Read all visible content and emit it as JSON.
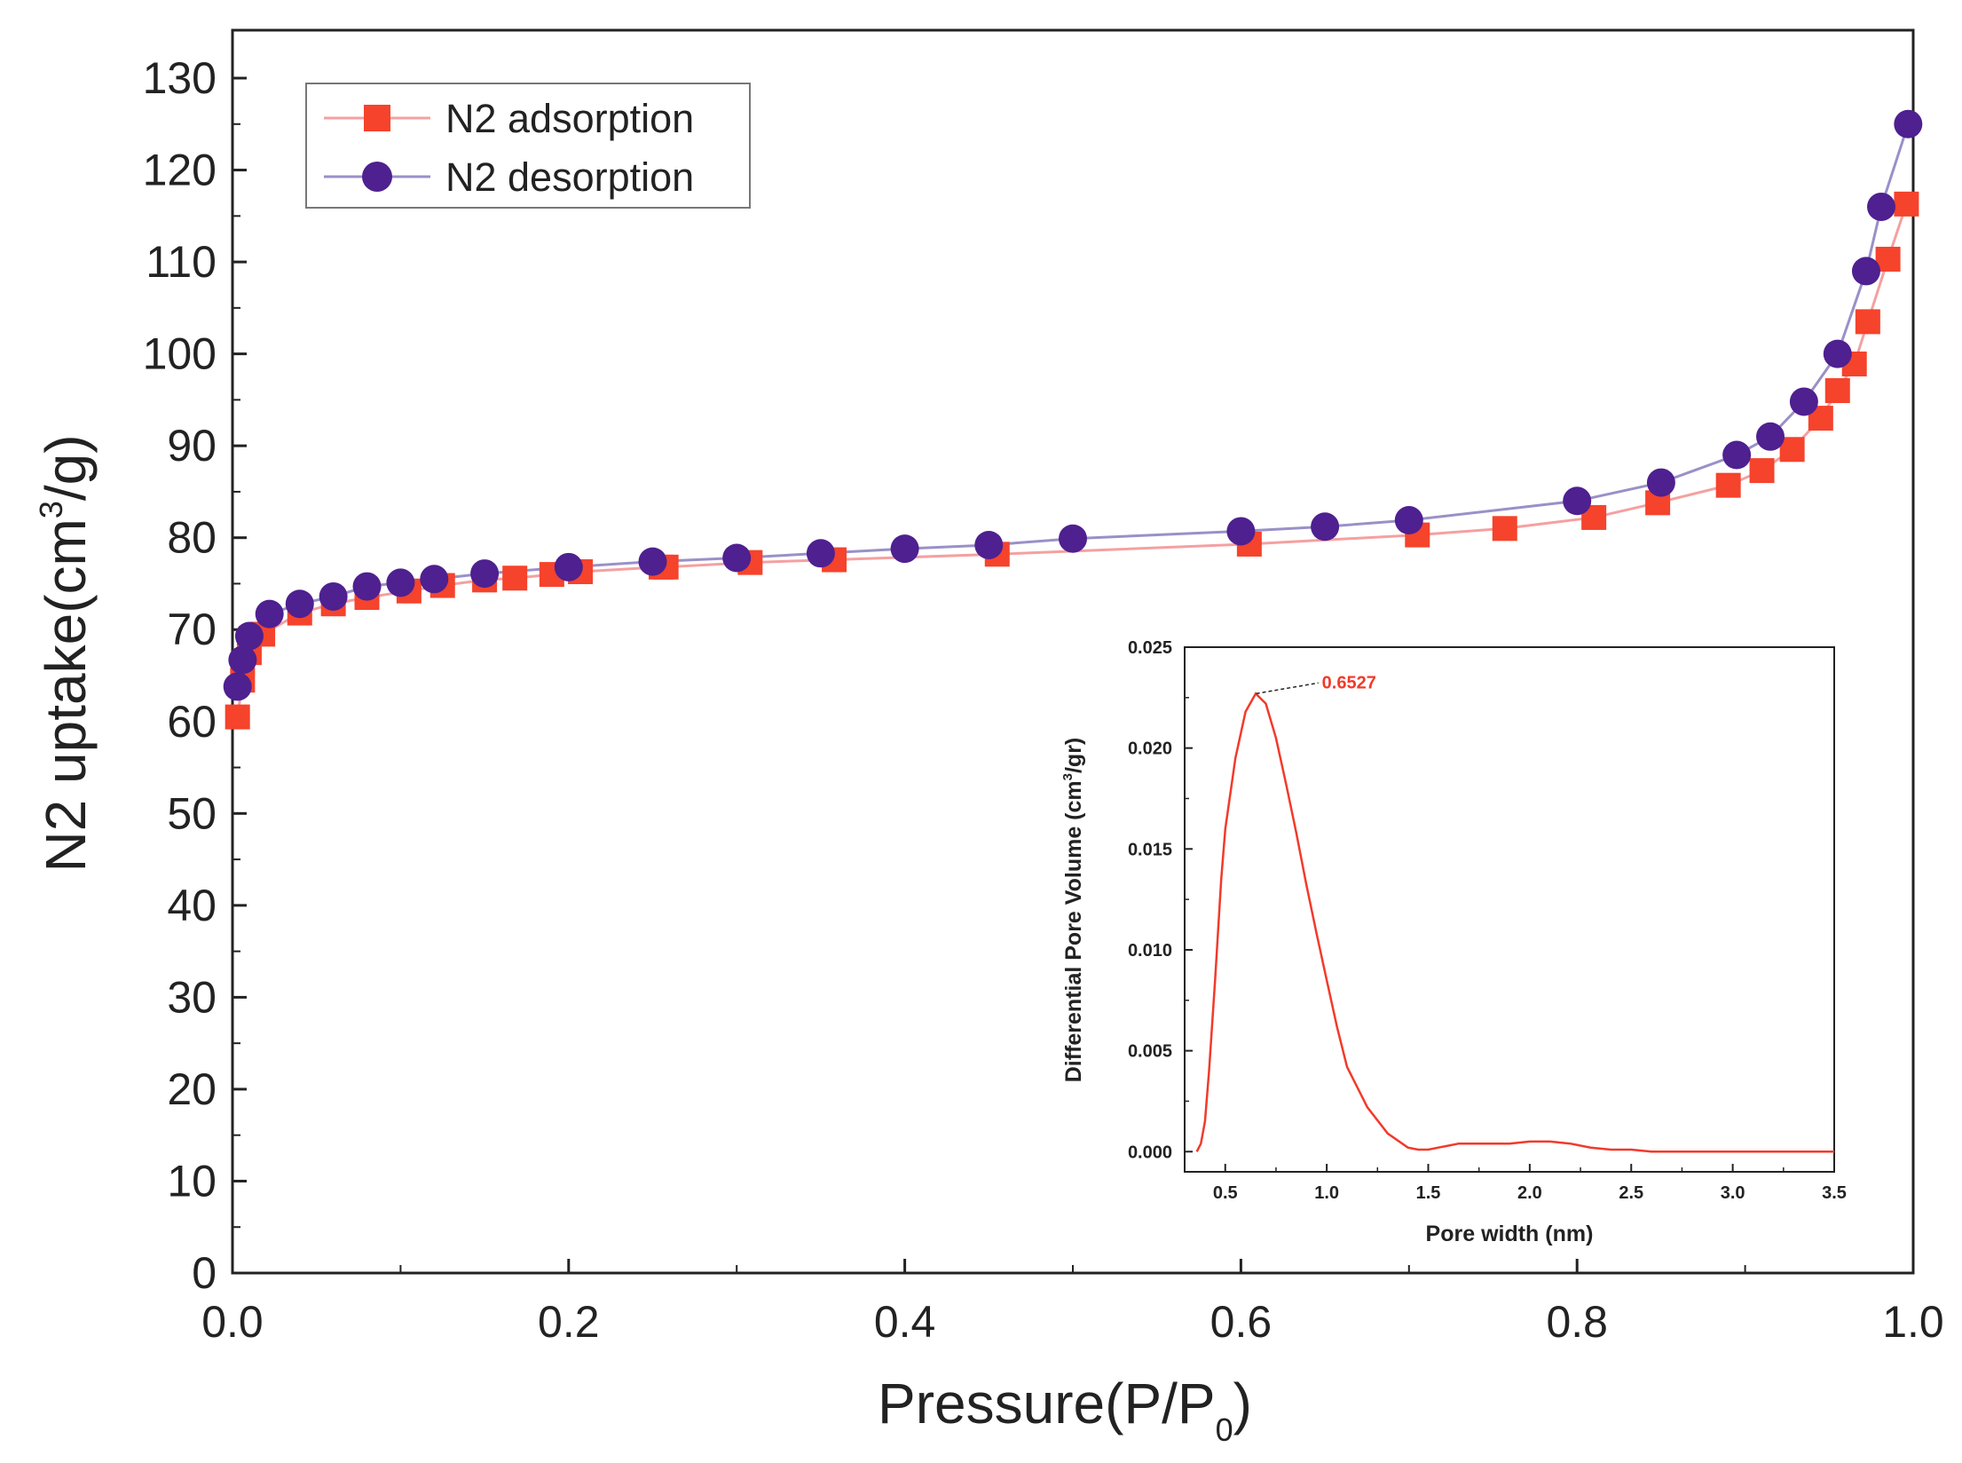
{
  "colors": {
    "adsorption": "#f5432c",
    "adsorption_line": "#f5a0a0",
    "desorption": "#4e2090",
    "desorption_line": "#9a90c8",
    "inset_curve": "#f23a2a",
    "axis": "#222222"
  },
  "chart_data": [
    {
      "type": "scatter",
      "xlabel": "Pressure(P/P0)",
      "xlabel_main": "Pressure(P/P",
      "xlabel_sub": "0",
      "xlabel_close": ")",
      "ylabel": "N2 uptake(cm3/g)",
      "ylabel_main": "N2 uptake(cm",
      "ylabel_sup": "3",
      "ylabel_tail": "/g)",
      "xlim": [
        0.0,
        1.0
      ],
      "ylim": [
        0,
        130
      ],
      "x_ticks": [
        0.0,
        0.2,
        0.4,
        0.6,
        0.8,
        1.0
      ],
      "x_tick_labels": [
        "0.0",
        "0.2",
        "0.4",
        "0.6",
        "0.8",
        "1.0"
      ],
      "y_ticks": [
        0,
        10,
        20,
        30,
        40,
        50,
        60,
        70,
        80,
        90,
        100,
        110,
        120,
        130
      ],
      "y_tick_labels": [
        "0",
        "10",
        "20",
        "30",
        "40",
        "50",
        "60",
        "70",
        "80",
        "90",
        "100",
        "110",
        "120",
        "130"
      ],
      "legend_position": "top-left",
      "grid": false,
      "series": [
        {
          "name": "N2 adsorption",
          "marker": "square",
          "color": "#f5432c",
          "x": [
            0.003,
            0.006,
            0.01,
            0.018,
            0.04,
            0.06,
            0.08,
            0.105,
            0.125,
            0.15,
            0.168,
            0.19,
            0.207,
            0.255,
            0.258,
            0.308,
            0.358,
            0.455,
            0.605,
            0.705,
            0.757,
            0.81,
            0.848,
            0.89,
            0.91,
            0.928,
            0.945,
            0.955,
            0.965,
            0.973,
            0.985,
            0.996
          ],
          "y": [
            60.5,
            64.5,
            67.5,
            69.5,
            71.8,
            72.8,
            73.5,
            74.2,
            74.8,
            75.4,
            75.6,
            76.0,
            76.3,
            76.8,
            76.8,
            77.3,
            77.6,
            78.2,
            79.3,
            80.3,
            81.0,
            82.2,
            83.8,
            85.7,
            87.3,
            89.6,
            93.0,
            96.0,
            98.9,
            103.5,
            110.3,
            116.3
          ]
        },
        {
          "name": "N2 desorption",
          "marker": "circle",
          "color": "#4e2090",
          "x": [
            0.003,
            0.006,
            0.01,
            0.022,
            0.04,
            0.06,
            0.08,
            0.1,
            0.12,
            0.15,
            0.2,
            0.25,
            0.3,
            0.35,
            0.4,
            0.45,
            0.5,
            0.6,
            0.65,
            0.7,
            0.8,
            0.85,
            0.895,
            0.915,
            0.935,
            0.955,
            0.972,
            0.981,
            0.997
          ],
          "y": [
            63.8,
            66.7,
            69.3,
            71.7,
            72.8,
            73.6,
            74.7,
            75.1,
            75.5,
            76.1,
            76.8,
            77.4,
            77.8,
            78.3,
            78.8,
            79.2,
            79.9,
            80.7,
            81.2,
            81.9,
            84.0,
            86.0,
            89.0,
            91.0,
            94.8,
            100.0,
            109.0,
            116.0,
            125.0
          ]
        }
      ]
    },
    {
      "type": "line",
      "xlabel": "Pore width (nm)",
      "ylabel": "Differential Pore Volume (cm3/gr)",
      "ylabel_main": "Differential Pore Volume (cm",
      "ylabel_sup": "3",
      "ylabel_tail": "/gr)",
      "xlim": [
        0.3,
        3.5
      ],
      "ylim": [
        -0.001,
        0.025
      ],
      "x_ticks": [
        0.5,
        1.0,
        1.5,
        2.0,
        2.5,
        3.0,
        3.5
      ],
      "x_tick_labels": [
        "0.5",
        "1.0",
        "1.5",
        "2.0",
        "2.5",
        "3.0",
        "3.5"
      ],
      "y_ticks": [
        0.0,
        0.005,
        0.01,
        0.015,
        0.02,
        0.025
      ],
      "y_tick_labels": [
        "0.000",
        "0.005",
        "0.010",
        "0.015",
        "0.020",
        "0.025"
      ],
      "grid": false,
      "annotation": {
        "text": "0.6527",
        "x": 0.6527,
        "y": 0.0227
      },
      "series": [
        {
          "color": "#f23a2a",
          "x": [
            0.36,
            0.38,
            0.4,
            0.42,
            0.45,
            0.48,
            0.5,
            0.55,
            0.6,
            0.65,
            0.7,
            0.75,
            0.8,
            0.85,
            0.9,
            0.95,
            1.0,
            1.05,
            1.1,
            1.2,
            1.3,
            1.4,
            1.45,
            1.5,
            1.55,
            1.6,
            1.65,
            1.7,
            1.8,
            1.9,
            2.0,
            2.1,
            2.2,
            2.3,
            2.4,
            2.5,
            2.6,
            2.7,
            3.0,
            3.5
          ],
          "y": [
            0.0,
            0.0004,
            0.0015,
            0.004,
            0.0085,
            0.0135,
            0.016,
            0.0195,
            0.0218,
            0.0227,
            0.0222,
            0.0205,
            0.0182,
            0.0158,
            0.0132,
            0.0108,
            0.0085,
            0.0062,
            0.0042,
            0.0022,
            0.0009,
            0.0002,
            0.0001,
            0.0001,
            0.0002,
            0.0003,
            0.0004,
            0.0004,
            0.0004,
            0.0004,
            0.0005,
            0.0005,
            0.0004,
            0.0002,
            0.0001,
            0.0001,
            0.0,
            0.0,
            0.0,
            0.0
          ]
        }
      ]
    }
  ]
}
